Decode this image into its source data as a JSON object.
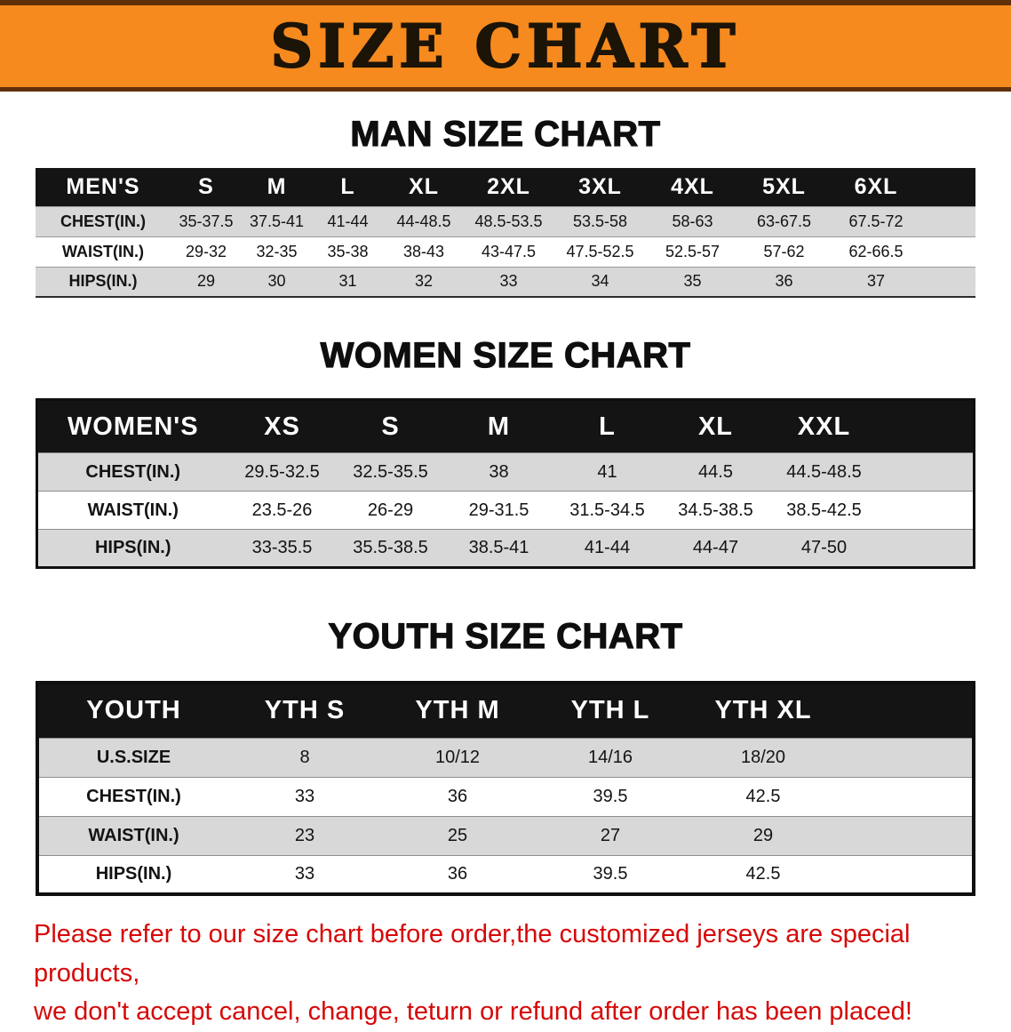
{
  "banner": {
    "title": "SIZE CHART"
  },
  "tables": {
    "men": {
      "heading": "MAN SIZE CHART",
      "header": [
        "MEN'S",
        "S",
        "M",
        "L",
        "XL",
        "2XL",
        "3XL",
        "4XL",
        "5XL",
        "6XL"
      ],
      "rows": [
        [
          "CHEST(IN.)",
          "35-37.5",
          "37.5-41",
          "41-44",
          "44-48.5",
          "48.5-53.5",
          "53.5-58",
          "58-63",
          "63-67.5",
          "67.5-72"
        ],
        [
          "WAIST(IN.)",
          "29-32",
          "32-35",
          "35-38",
          "38-43",
          "43-47.5",
          "47.5-52.5",
          "52.5-57",
          "57-62",
          "62-66.5"
        ],
        [
          "HIPS(IN.)",
          "29",
          "30",
          "31",
          "32",
          "33",
          "34",
          "35",
          "36",
          "37"
        ]
      ]
    },
    "women": {
      "heading": "WOMEN SIZE CHART",
      "header": [
        "WOMEN'S",
        "XS",
        "S",
        "M",
        "L",
        "XL",
        "XXL"
      ],
      "rows": [
        [
          "CHEST(IN.)",
          "29.5-32.5",
          "32.5-35.5",
          "38",
          "41",
          "44.5",
          "44.5-48.5"
        ],
        [
          "WAIST(IN.)",
          "23.5-26",
          "26-29",
          "29-31.5",
          "31.5-34.5",
          "34.5-38.5",
          "38.5-42.5"
        ],
        [
          "HIPS(IN.)",
          "33-35.5",
          "35.5-38.5",
          "38.5-41",
          "41-44",
          "44-47",
          "47-50"
        ]
      ]
    },
    "youth": {
      "heading": "YOUTH SIZE CHART",
      "header": [
        "YOUTH",
        "YTH S",
        "YTH M",
        "YTH L",
        "YTH XL"
      ],
      "rows": [
        [
          "U.S.SIZE",
          "8",
          "10/12",
          "14/16",
          "18/20"
        ],
        [
          "CHEST(IN.)",
          "33",
          "36",
          "39.5",
          "42.5"
        ],
        [
          "WAIST(IN.)",
          "23",
          "25",
          "27",
          "29"
        ],
        [
          "HIPS(IN.)",
          "33",
          "36",
          "39.5",
          "42.5"
        ]
      ]
    }
  },
  "disclaimer": {
    "line1": "Please refer to our size chart before order,the customized jerseys are special products,",
    "line2": "we don't accept cancel, change, teturn or refund after order has been placed!"
  },
  "colors": {
    "banner_bg": "#f68a1e",
    "banner_border": "#60300a",
    "header_bg": "#141414",
    "row_alt": "#d8d8d8",
    "disclaimer_red": "#d60808"
  }
}
